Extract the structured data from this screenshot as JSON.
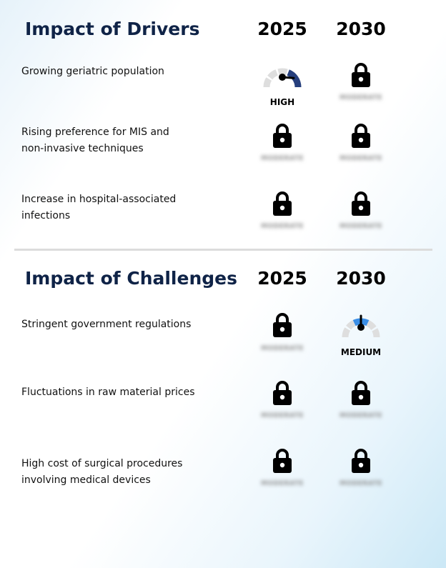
{
  "drivers": {
    "title": "Impact of Drivers",
    "year_a": "2025",
    "year_b": "2030",
    "rows": [
      {
        "label_line1": "Growing geriatric population",
        "label_line2": "",
        "cell_a": {
          "type": "gauge",
          "level": "HIGH",
          "value": 0.85,
          "color": "#263f7d"
        },
        "cell_b": {
          "type": "locked",
          "hidden_text": "MODERATE"
        }
      },
      {
        "label_line1": "Rising preference for MIS and",
        "label_line2": "non-invasive techniques",
        "cell_a": {
          "type": "locked",
          "hidden_text": "MODERATE"
        },
        "cell_b": {
          "type": "locked",
          "hidden_text": "MODERATE"
        }
      },
      {
        "label_line1": "Increase in hospital-associated",
        "label_line2": "infections",
        "cell_a": {
          "type": "locked",
          "hidden_text": "MODERATE"
        },
        "cell_b": {
          "type": "locked",
          "hidden_text": "MODERATE"
        }
      }
    ]
  },
  "challenges": {
    "title": "Impact of Challenges",
    "year_a": "2025",
    "year_b": "2030",
    "rows": [
      {
        "label_line1": "Stringent government regulations",
        "label_line2": "",
        "cell_a": {
          "type": "locked",
          "hidden_text": "MODERATE"
        },
        "cell_b": {
          "type": "gauge",
          "level": "MEDIUM",
          "value": 0.5,
          "color": "#3a8ee6"
        }
      },
      {
        "label_line1": "Fluctuations in raw material prices",
        "label_line2": "",
        "cell_a": {
          "type": "locked",
          "hidden_text": "MODERATE"
        },
        "cell_b": {
          "type": "locked",
          "hidden_text": "MODERATE"
        }
      },
      {
        "label_line1": "High cost of surgical procedures",
        "label_line2": "involving medical devices",
        "cell_a": {
          "type": "locked",
          "hidden_text": "MODERATE"
        },
        "cell_b": {
          "type": "locked",
          "hidden_text": "MODERATE"
        }
      }
    ]
  },
  "icons": {
    "lock": "lock-icon",
    "gauge": "gauge-icon"
  },
  "colors": {
    "heading": "#0f2347",
    "gauge_track": "#dedede",
    "needle": "#000000"
  }
}
